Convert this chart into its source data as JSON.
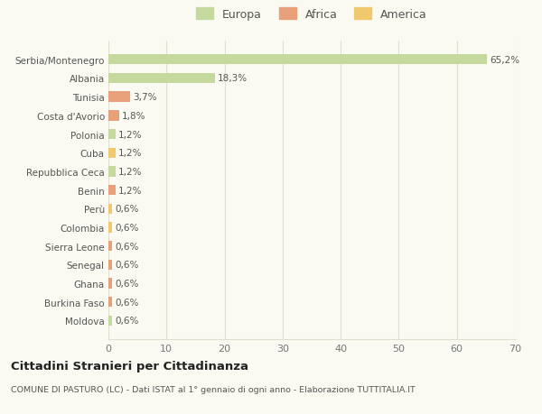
{
  "categories": [
    "Moldova",
    "Burkina Faso",
    "Ghana",
    "Senegal",
    "Sierra Leone",
    "Colombia",
    "Perù",
    "Benin",
    "Repubblica Ceca",
    "Cuba",
    "Polonia",
    "Costa d'Avorio",
    "Tunisia",
    "Albania",
    "Serbia/Montenegro"
  ],
  "values": [
    0.6,
    0.6,
    0.6,
    0.6,
    0.6,
    0.6,
    0.6,
    1.2,
    1.2,
    1.2,
    1.2,
    1.8,
    3.7,
    18.3,
    65.2
  ],
  "labels": [
    "0,6%",
    "0,6%",
    "0,6%",
    "0,6%",
    "0,6%",
    "0,6%",
    "0,6%",
    "1,2%",
    "1,2%",
    "1,2%",
    "1,2%",
    "1,8%",
    "3,7%",
    "18,3%",
    "65,2%"
  ],
  "colors": [
    "#c5d89e",
    "#e8a07a",
    "#e8a07a",
    "#e8a07a",
    "#e8a07a",
    "#f0c96e",
    "#f0c96e",
    "#e8a07a",
    "#c5d89e",
    "#f0c96e",
    "#c5d89e",
    "#e8a07a",
    "#e8a07a",
    "#c5d89e",
    "#c5d89e"
  ],
  "legend_labels": [
    "Europa",
    "Africa",
    "America"
  ],
  "legend_colors": [
    "#c5d89e",
    "#e8a07a",
    "#f0c96e"
  ],
  "title": "Cittadini Stranieri per Cittadinanza",
  "subtitle": "COMUNE DI PASTURO (LC) - Dati ISTAT al 1° gennaio di ogni anno - Elaborazione TUTTITALIA.IT",
  "xlim": [
    0,
    70
  ],
  "xticks": [
    0,
    10,
    20,
    30,
    40,
    50,
    60,
    70
  ],
  "bg_color": "#fafaf2",
  "grid_color": "#e0e0d0",
  "bar_height": 0.55
}
